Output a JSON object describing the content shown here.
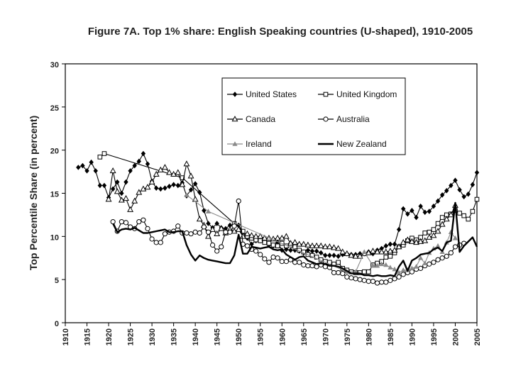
{
  "chart_data": {
    "type": "line",
    "title": "Figure 7A. Top 1% share: English Speaking countries (U-shaped), 1910-2005",
    "xlabel": "",
    "ylabel": "Top Percentile Share (in percent)",
    "xlim": [
      1910,
      2005
    ],
    "ylim": [
      0,
      30
    ],
    "xticks": [
      1910,
      1915,
      1920,
      1925,
      1930,
      1935,
      1940,
      1945,
      1950,
      1955,
      1960,
      1965,
      1970,
      1975,
      1980,
      1985,
      1990,
      1995,
      2000,
      2005
    ],
    "yticks": [
      0,
      5,
      10,
      15,
      20,
      25,
      30
    ],
    "grid": "none",
    "legend_position": "top-right-inset",
    "series": [
      {
        "name": "United States",
        "marker": "diamond",
        "color": "#000000",
        "x": [
          1913,
          1914,
          1915,
          1916,
          1917,
          1918,
          1919,
          1920,
          1921,
          1922,
          1923,
          1924,
          1925,
          1926,
          1927,
          1928,
          1929,
          1930,
          1931,
          1932,
          1933,
          1934,
          1935,
          1936,
          1937,
          1938,
          1939,
          1940,
          1941,
          1942,
          1943,
          1944,
          1945,
          1946,
          1947,
          1948,
          1949,
          1950,
          1951,
          1952,
          1953,
          1954,
          1955,
          1956,
          1957,
          1958,
          1959,
          1960,
          1961,
          1962,
          1963,
          1964,
          1965,
          1966,
          1967,
          1968,
          1969,
          1970,
          1971,
          1972,
          1973,
          1974,
          1975,
          1976,
          1977,
          1978,
          1979,
          1980,
          1981,
          1982,
          1983,
          1984,
          1985,
          1986,
          1987,
          1988,
          1989,
          1990,
          1991,
          1992,
          1993,
          1994,
          1995,
          1996,
          1997,
          1998,
          1999,
          2000,
          2001,
          2002,
          2003,
          2004,
          2005
        ],
        "y": [
          18.0,
          18.2,
          17.6,
          18.6,
          17.6,
          15.9,
          15.9,
          14.5,
          15.5,
          16.3,
          15.0,
          16.3,
          17.6,
          18.2,
          18.7,
          19.6,
          18.4,
          16.4,
          15.6,
          15.5,
          15.6,
          15.8,
          16.0,
          15.9,
          16.2,
          14.7,
          15.4,
          16.1,
          15.1,
          13.0,
          11.5,
          11.0,
          11.5,
          11.0,
          10.9,
          11.3,
          11.4,
          11.3,
          10.5,
          9.8,
          9.1,
          9.5,
          9.5,
          9.4,
          9.0,
          8.9,
          9.3,
          8.4,
          8.5,
          8.4,
          8.4,
          8.3,
          8.1,
          8.4,
          8.3,
          8.3,
          8.1,
          7.8,
          7.8,
          7.8,
          7.7,
          7.9,
          8.0,
          7.9,
          7.9,
          8.0,
          8.0,
          8.2,
          8.0,
          8.4,
          8.6,
          8.9,
          9.1,
          9.1,
          10.8,
          13.2,
          12.6,
          13.0,
          12.2,
          13.5,
          12.8,
          12.9,
          13.5,
          14.1,
          14.8,
          15.3,
          15.9,
          16.5,
          15.4,
          14.6,
          14.9,
          16.0,
          17.4
        ]
      },
      {
        "name": "United Kingdom",
        "marker": "square",
        "color": "#000000",
        "x": [
          1918,
          1919,
          1937,
          1949,
          1951,
          1952,
          1953,
          1954,
          1955,
          1956,
          1957,
          1958,
          1959,
          1960,
          1961,
          1962,
          1963,
          1964,
          1965,
          1966,
          1967,
          1968,
          1969,
          1970,
          1971,
          1972,
          1973,
          1974,
          1975,
          1976,
          1977,
          1978,
          1979,
          1980,
          1981,
          1982,
          1983,
          1984,
          1985,
          1986,
          1987,
          1988,
          1989,
          1990,
          1991,
          1992,
          1993,
          1994,
          1995,
          1996,
          1997,
          1998,
          1999,
          2000,
          2001,
          2002,
          2003,
          2004,
          2005
        ],
        "y": [
          19.2,
          19.6,
          16.8,
          11.5,
          10.6,
          10.0,
          9.8,
          9.6,
          9.5,
          9.3,
          9.2,
          9.0,
          8.9,
          9.2,
          8.9,
          9.0,
          8.8,
          8.4,
          8.2,
          7.9,
          7.8,
          7.6,
          7.3,
          7.1,
          7.0,
          6.8,
          7.0,
          6.3,
          6.1,
          5.9,
          5.8,
          5.8,
          5.9,
          5.9,
          6.7,
          6.9,
          7.1,
          7.6,
          7.7,
          8.1,
          8.8,
          9.0,
          9.5,
          9.8,
          9.6,
          9.9,
          10.4,
          10.5,
          10.8,
          11.5,
          12.2,
          12.5,
          12.6,
          13.0,
          12.7,
          12.4,
          12.0,
          12.9,
          14.3
        ]
      },
      {
        "name": "Canada",
        "marker": "triangle",
        "color": "#000000",
        "x": [
          1920,
          1921,
          1922,
          1923,
          1924,
          1925,
          1926,
          1927,
          1928,
          1929,
          1930,
          1931,
          1932,
          1933,
          1934,
          1935,
          1936,
          1937,
          1938,
          1939,
          1940,
          1941,
          1942,
          1943,
          1944,
          1945,
          1946,
          1947,
          1948,
          1949,
          1950,
          1951,
          1952,
          1953,
          1954,
          1955,
          1956,
          1957,
          1958,
          1959,
          1960,
          1961,
          1962,
          1963,
          1964,
          1965,
          1966,
          1967,
          1968,
          1969,
          1970,
          1971,
          1972,
          1973,
          1974,
          1975,
          1976,
          1977,
          1978,
          1979,
          1980,
          1981,
          1982,
          1983,
          1984,
          1985,
          1986,
          1987,
          1988,
          1989,
          1990,
          1991,
          1992,
          1993,
          1994,
          1995,
          1996,
          1997,
          1998,
          1999,
          2000
        ],
        "y": [
          14.3,
          17.6,
          15.2,
          14.2,
          14.4,
          13.1,
          14.1,
          15.1,
          15.5,
          15.7,
          16.3,
          17.2,
          17.7,
          18.0,
          17.4,
          17.2,
          17.4,
          16.0,
          18.4,
          17.0,
          14.3,
          12.0,
          11.3,
          10.0,
          10.8,
          10.3,
          10.9,
          10.4,
          10.8,
          10.6,
          10.8,
          10.0,
          10.3,
          10.1,
          10.0,
          10.0,
          9.8,
          9.8,
          9.7,
          9.8,
          9.8,
          10.0,
          9.2,
          9.3,
          9.1,
          9.1,
          9.0,
          8.9,
          8.9,
          8.9,
          8.8,
          8.8,
          8.7,
          8.6,
          8.2,
          8.0,
          7.8,
          7.7,
          7.7,
          8.0,
          8.1,
          8.3,
          8.2,
          8.2,
          8.2,
          8.3,
          8.4,
          8.8,
          9.3,
          9.6,
          9.4,
          9.3,
          9.4,
          9.5,
          9.9,
          10.1,
          10.6,
          11.4,
          12.0,
          12.5,
          13.6
        ]
      },
      {
        "name": "Australia",
        "marker": "circle",
        "color": "#000000",
        "x": [
          1921,
          1922,
          1923,
          1924,
          1925,
          1926,
          1927,
          1928,
          1929,
          1930,
          1931,
          1932,
          1933,
          1934,
          1935,
          1936,
          1937,
          1938,
          1939,
          1940,
          1941,
          1942,
          1943,
          1944,
          1945,
          1946,
          1947,
          1948,
          1949,
          1950,
          1951,
          1952,
          1953,
          1954,
          1955,
          1956,
          1957,
          1958,
          1959,
          1960,
          1961,
          1962,
          1963,
          1964,
          1965,
          1966,
          1967,
          1968,
          1969,
          1970,
          1971,
          1972,
          1973,
          1974,
          1975,
          1976,
          1977,
          1978,
          1979,
          1980,
          1981,
          1982,
          1983,
          1984,
          1985,
          1986,
          1987,
          1988,
          1989,
          1990,
          1991,
          1992,
          1993,
          1994,
          1995,
          1996,
          1997,
          1998,
          1999,
          2000,
          2001,
          2002
        ],
        "y": [
          11.7,
          10.6,
          11.7,
          11.6,
          11.1,
          10.9,
          11.7,
          11.9,
          10.9,
          9.7,
          9.3,
          9.3,
          10.3,
          10.5,
          10.6,
          11.2,
          10.4,
          10.4,
          10.3,
          10.5,
          10.4,
          11.1,
          10.5,
          9.0,
          8.3,
          8.8,
          10.5,
          10.5,
          11.2,
          14.1,
          9.1,
          8.9,
          8.5,
          8.3,
          7.9,
          7.4,
          7.0,
          7.6,
          7.5,
          7.1,
          7.1,
          7.3,
          7.0,
          7.0,
          6.7,
          6.6,
          6.6,
          6.5,
          6.7,
          6.5,
          6.4,
          5.8,
          5.8,
          5.7,
          5.3,
          5.2,
          5.1,
          5.0,
          4.9,
          4.8,
          4.8,
          4.6,
          4.7,
          4.7,
          4.9,
          5.1,
          5.3,
          5.6,
          5.8,
          5.9,
          6.2,
          6.3,
          6.6,
          6.8,
          7.0,
          7.3,
          7.5,
          7.7,
          8.1,
          8.8,
          9.0,
          9.2
        ]
      },
      {
        "name": "Ireland",
        "marker": "triangle-filled",
        "color": "#8a8a8a",
        "x": [
          1938,
          1943,
          1975,
          1977,
          1979,
          1981,
          1982,
          1983,
          1984,
          1985,
          1986,
          1987,
          1988,
          1989,
          1990,
          1991,
          1992,
          1993,
          1994,
          1995,
          1996,
          1997,
          1998,
          1999,
          2000
        ],
        "y": [
          14.8,
          12.9,
          5.9,
          5.9,
          8.2,
          6.6,
          6.6,
          6.8,
          6.7,
          6.4,
          6.2,
          5.8,
          6.1,
          6.1,
          6.3,
          6.5,
          7.5,
          6.9,
          8.1,
          8.6,
          8.9,
          8.2,
          9.3,
          10.5,
          9.8
        ]
      },
      {
        "name": "New Zealand",
        "marker": "none",
        "color": "#000000",
        "x": [
          1921,
          1922,
          1923,
          1924,
          1925,
          1926,
          1927,
          1928,
          1929,
          1930,
          1931,
          1932,
          1933,
          1934,
          1935,
          1936,
          1937,
          1938,
          1939,
          1940,
          1941,
          1942,
          1943,
          1944,
          1945,
          1946,
          1947,
          1948,
          1949,
          1950,
          1951,
          1952,
          1953,
          1954,
          1955,
          1956,
          1957,
          1958,
          1959,
          1960,
          1961,
          1962,
          1963,
          1964,
          1965,
          1966,
          1967,
          1968,
          1969,
          1970,
          1971,
          1972,
          1973,
          1974,
          1975,
          1976,
          1977,
          1978,
          1979,
          1980,
          1981,
          1982,
          1983,
          1984,
          1985,
          1986,
          1987,
          1988,
          1989,
          1990,
          1991,
          1992,
          1993,
          1994,
          1995,
          1996,
          1997,
          1998,
          1999,
          2000,
          2001,
          2002,
          2003,
          2004,
          2005
        ],
        "y": [
          11.5,
          10.5,
          10.8,
          10.9,
          10.8,
          11.0,
          10.7,
          10.4,
          10.4,
          10.5,
          10.6,
          10.7,
          10.8,
          10.5,
          10.5,
          10.6,
          10.6,
          9.0,
          7.9,
          7.2,
          7.8,
          7.5,
          7.3,
          7.2,
          7.1,
          7.0,
          6.9,
          6.9,
          7.8,
          10.2,
          8.0,
          8.0,
          8.8,
          8.7,
          8.6,
          8.7,
          8.8,
          8.5,
          8.4,
          8.5,
          7.9,
          7.6,
          7.3,
          7.6,
          7.7,
          7.2,
          7.0,
          6.8,
          6.9,
          6.8,
          6.6,
          6.6,
          6.5,
          6.3,
          6.0,
          5.7,
          5.7,
          5.7,
          5.5,
          5.5,
          5.4,
          5.5,
          5.4,
          5.4,
          5.5,
          5.4,
          6.5,
          7.2,
          6.0,
          7.2,
          7.5,
          7.9,
          8.0,
          8.1,
          8.5,
          8.7,
          8.3,
          9.3,
          9.5,
          13.9,
          8.2,
          8.9,
          9.4,
          9.9,
          8.8
        ]
      }
    ]
  }
}
